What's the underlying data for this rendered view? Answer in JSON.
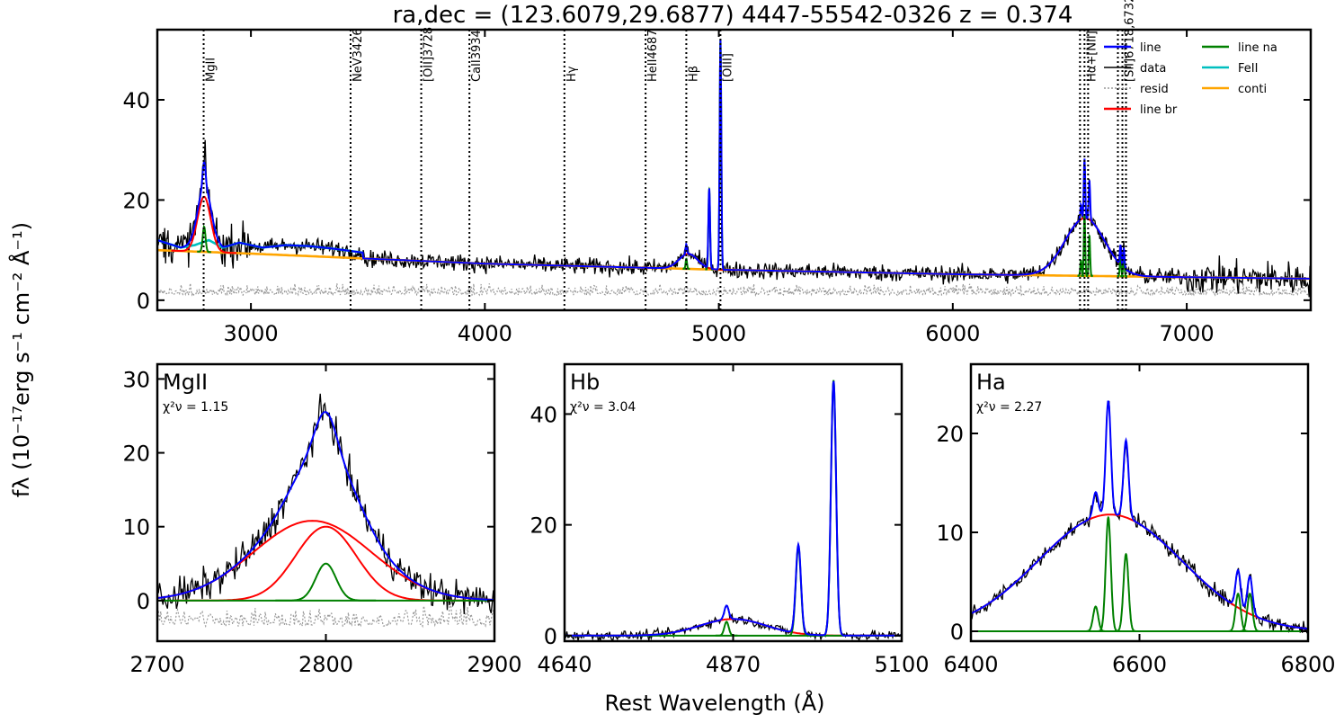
{
  "title": "ra,dec = (123.6079,29.6877)   4447-55542-0326   z = 0.374",
  "ylabel": "fλ (10⁻¹⁷erg s⁻¹ cm⁻² Å⁻¹)",
  "xlabel": "Rest Wavelength (Å)",
  "colors": {
    "data": "#000000",
    "line": "#0000ff",
    "line_br": "#ff0000",
    "line_na": "#008000",
    "feii": "#00bfbf",
    "conti": "#ffa500",
    "resid": "#999999"
  },
  "legend": {
    "col1": [
      "line",
      "data",
      "resid",
      "line br"
    ],
    "col2": [
      "line na",
      "FeII",
      "conti"
    ]
  },
  "chart_data": [
    {
      "type": "line",
      "panel": "full spectrum",
      "xlim": [
        2600,
        7530
      ],
      "ylim": [
        -2,
        54
      ],
      "xticks": [
        "3000",
        "4000",
        "5000",
        "6000",
        "7000"
      ],
      "yticks": [
        "0",
        "20",
        "40"
      ],
      "line_markers": [
        {
          "label": "MgII",
          "x": 2798
        },
        {
          "label": "NeV3426",
          "x": 3426
        },
        {
          "label": "[OII]3728",
          "x": 3728
        },
        {
          "label": "CaII3934",
          "x": 3934
        },
        {
          "label": "Hγ",
          "x": 4340
        },
        {
          "label": "HeII4687",
          "x": 4687
        },
        {
          "label": "Hβ",
          "x": 4861
        },
        {
          "label": "[OIII]",
          "x": 5007
        },
        {
          "label": "Hα+[NII]",
          "x": 6563
        },
        {
          "label": "[SII]6718,6732",
          "x": 6725
        }
      ],
      "continuum": {
        "x": [
          2600,
          3000,
          4000,
          5000,
          6000,
          7000,
          7530
        ],
        "y": [
          10.0,
          9.3,
          7.3,
          6.1,
          5.2,
          4.6,
          4.3
        ]
      },
      "components": [
        {
          "series": "line br",
          "center": 2800,
          "sigma": 28,
          "amp": 11
        },
        {
          "series": "line na",
          "center": 2800,
          "sigma": 6,
          "amp": 5
        },
        {
          "series": "line br",
          "center": 4870,
          "sigma": 40,
          "amp": 3
        },
        {
          "series": "line na",
          "center": 4861,
          "sigma": 3,
          "amp": 2
        },
        {
          "series": "line na",
          "center": 4959,
          "sigma": 3.5,
          "amp": 16
        },
        {
          "series": "line na",
          "center": 5007,
          "sigma": 3.5,
          "amp": 46
        },
        {
          "series": "line br",
          "center": 6565,
          "sigma": 85,
          "amp": 11.5
        },
        {
          "series": "line na",
          "center": 6548,
          "sigma": 3,
          "amp": 3
        },
        {
          "series": "line na",
          "center": 6563,
          "sigma": 3,
          "amp": 12
        },
        {
          "series": "line na",
          "center": 6584,
          "sigma": 3,
          "amp": 8
        },
        {
          "series": "line na",
          "center": 6717,
          "sigma": 3,
          "amp": 4
        },
        {
          "series": "line na",
          "center": 6731,
          "sigma": 3,
          "amp": 4
        }
      ],
      "feii": {
        "x": [
          2600,
          2700,
          2760,
          2820,
          2880,
          2950,
          3050,
          3150,
          3250,
          3350,
          3480
        ],
        "y": [
          12,
          10.5,
          11,
          12,
          10.5,
          11.5,
          10.5,
          11,
          10.8,
          10.3,
          9.5
        ]
      }
    },
    {
      "type": "line",
      "panel": "MgII",
      "title": "MgII",
      "chi2": "χ²ν = 1.15",
      "xlim": [
        2700,
        2900
      ],
      "ylim": [
        -5.5,
        32
      ],
      "xticks": [
        "2700",
        "2800",
        "2900"
      ],
      "yticks": [
        "0",
        "10",
        "20",
        "30"
      ],
      "components": [
        {
          "series": "line br",
          "center": 2792,
          "sigma": 35,
          "amp": 10.8
        },
        {
          "series": "line br",
          "center": 2800,
          "sigma": 18,
          "amp": 10
        },
        {
          "series": "line na",
          "center": 2800,
          "sigma": 6,
          "amp": 5
        }
      ]
    },
    {
      "type": "line",
      "panel": "Hb",
      "title": "Hb",
      "chi2": "χ²ν = 3.04",
      "xlim": [
        4640,
        5100
      ],
      "ylim": [
        -1,
        49
      ],
      "xticks": [
        "4640",
        "4870",
        "5100"
      ],
      "yticks": [
        "0",
        "20",
        "40"
      ],
      "components": [
        {
          "series": "line br",
          "center": 4870,
          "sigma": 45,
          "amp": 3
        },
        {
          "series": "line na",
          "center": 4861,
          "sigma": 3,
          "amp": 2.5
        },
        {
          "series": "line na",
          "center": 4959,
          "sigma": 3.5,
          "amp": 16
        },
        {
          "series": "line na",
          "center": 5007,
          "sigma": 3.5,
          "amp": 46
        }
      ]
    },
    {
      "type": "line",
      "panel": "Ha",
      "title": "Ha",
      "chi2": "χ²ν = 2.27",
      "xlim": [
        6400,
        6800
      ],
      "ylim": [
        -1,
        27
      ],
      "xticks": [
        "6400",
        "6600",
        "6800"
      ],
      "yticks": [
        "0",
        "10",
        "20"
      ],
      "components": [
        {
          "series": "line br",
          "center": 6565,
          "sigma": 85,
          "amp": 11.8
        },
        {
          "series": "line na",
          "center": 6548,
          "sigma": 3,
          "amp": 2.5
        },
        {
          "series": "line na",
          "center": 6563,
          "sigma": 3,
          "amp": 11.5
        },
        {
          "series": "line na",
          "center": 6584,
          "sigma": 3,
          "amp": 7.8
        },
        {
          "series": "line na",
          "center": 6717,
          "sigma": 3,
          "amp": 3.8
        },
        {
          "series": "line na",
          "center": 6731,
          "sigma": 3,
          "amp": 3.8
        }
      ]
    }
  ]
}
